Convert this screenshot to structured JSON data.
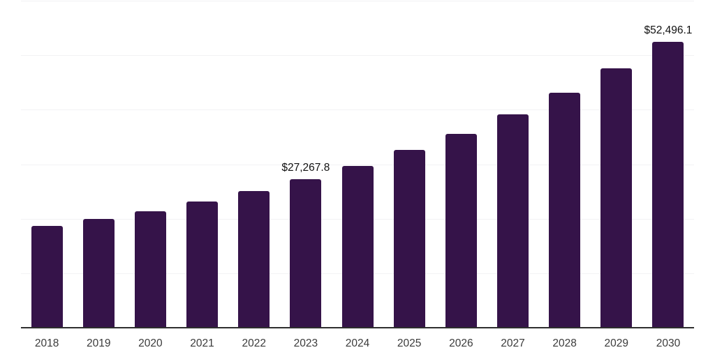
{
  "chart_data": {
    "type": "bar",
    "title": "",
    "xlabel": "",
    "ylabel": "",
    "categories": [
      "2018",
      "2019",
      "2020",
      "2021",
      "2022",
      "2023",
      "2024",
      "2025",
      "2026",
      "2027",
      "2028",
      "2029",
      "2030"
    ],
    "values": [
      18700,
      20000,
      21400,
      23100,
      25100,
      27267.8,
      29700,
      32600,
      35600,
      39100,
      43100,
      47600,
      52496.1
    ],
    "data_labels": [
      {
        "category": "2023",
        "text": "$27,267.8"
      },
      {
        "category": "2030",
        "text": "$52,496.1"
      }
    ],
    "ylim": [
      0,
      60000
    ],
    "gridline_interval": 10000,
    "grid": "horizontal-only",
    "y_axis_labels_visible": false,
    "legend_position": "none",
    "colors": {
      "bar": "#351349",
      "gridline": "#f2f2f4",
      "axis_line": "#2e2e2e",
      "tick_label": "#3b3b3b",
      "data_label": "#111111",
      "background": "#ffffff"
    }
  }
}
